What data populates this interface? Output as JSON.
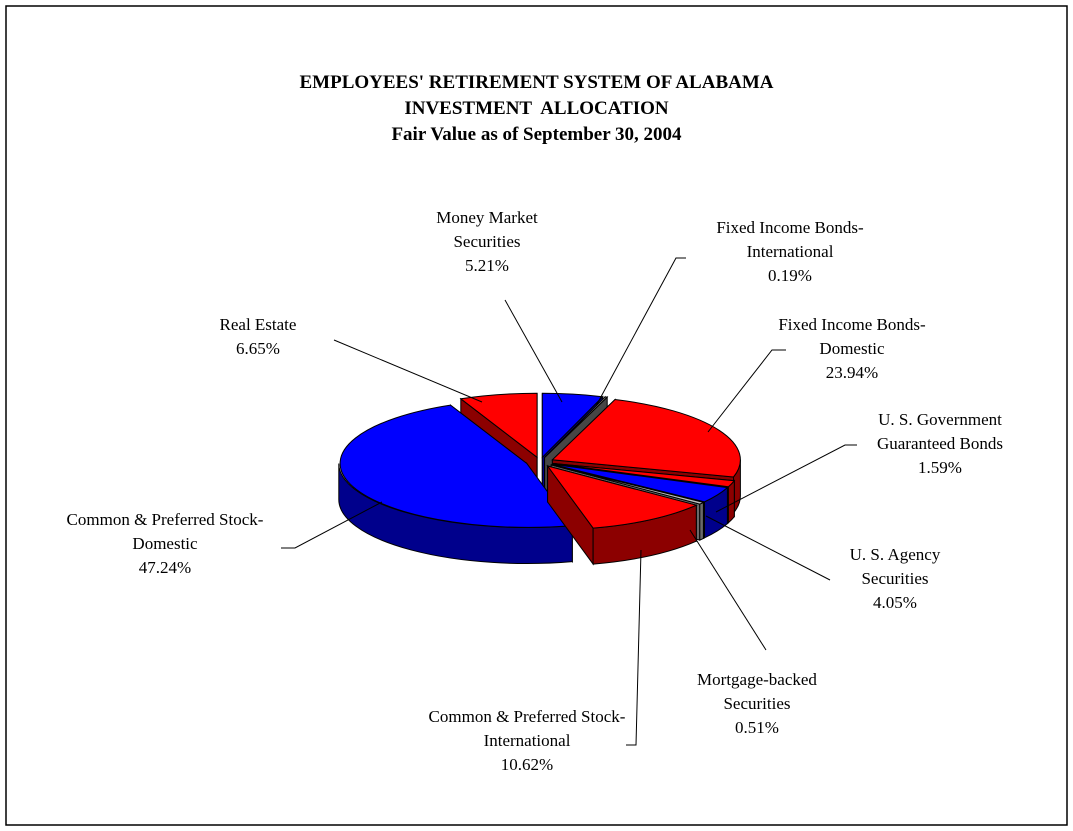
{
  "chart_data": {
    "type": "pie",
    "title": "EMPLOYEES' RETIREMENT SYSTEM OF ALABAMA",
    "subtitle": [
      "INVESTMENT  ALLOCATION",
      "Fair Value as of September 30, 2004"
    ],
    "categories": [
      "Money Market Securities",
      "Fixed Income Bonds-International",
      "Fixed Income Bonds-Domestic",
      "U. S. Government Guaranteed Bonds",
      "U. S. Agency Securities",
      "Mortgage-backed Securities",
      "Common & Preferred Stock-International",
      "Common & Preferred Stock-Domestic",
      "Real Estate"
    ],
    "values": [
      5.21,
      0.19,
      23.94,
      1.59,
      4.05,
      0.51,
      10.62,
      47.24,
      6.65
    ],
    "value_labels": [
      "5.21%",
      "0.19%",
      "23.94%",
      "1.59%",
      "4.05%",
      "0.51%",
      "10.62%",
      "47.24%",
      "6.65%"
    ],
    "colors": [
      "#0000ff",
      "#808080",
      "#ff0000",
      "#ff0000",
      "#0000ff",
      "#c0c0c0",
      "#ff0000",
      "#0000ff",
      "#ff0000"
    ]
  }
}
